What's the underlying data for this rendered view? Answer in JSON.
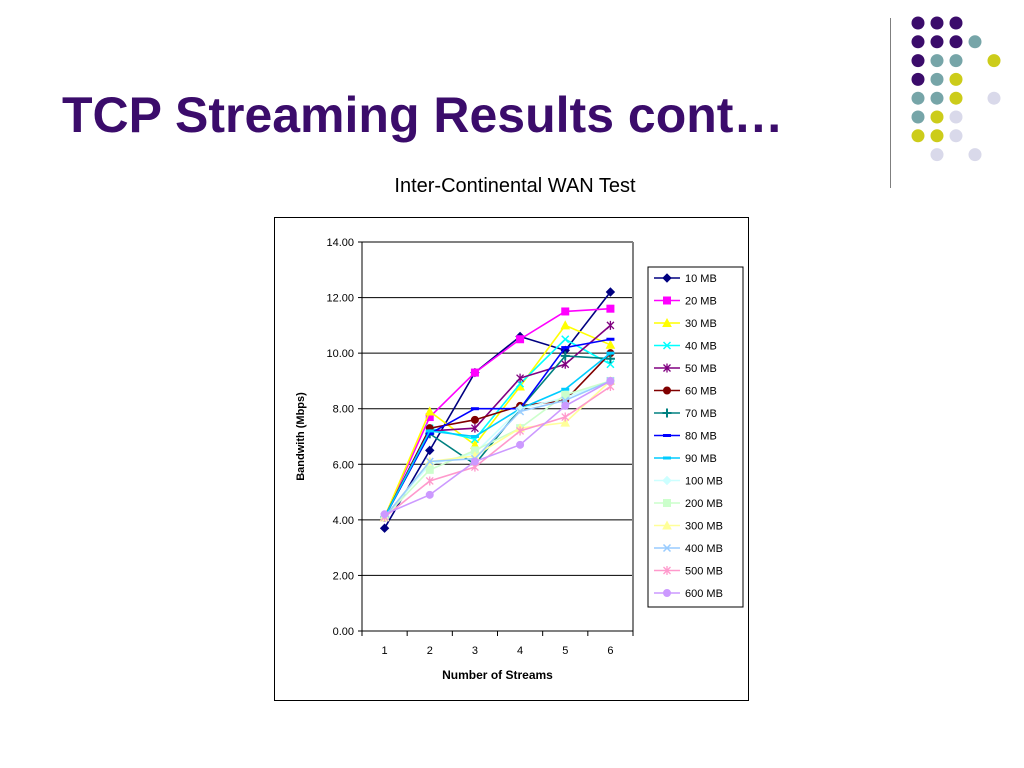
{
  "slide": {
    "title": "TCP Streaming Results cont…"
  },
  "decor": {
    "dot_colors": [
      "#3b0c6b",
      "#76a5a8",
      "#cccc1a",
      "#d9d9ea"
    ]
  },
  "chart_data": {
    "type": "line",
    "title": "Inter-Continental WAN Test",
    "xlabel": "Number of Streams",
    "ylabel": "Bandwith (Mbps)",
    "categories": [
      "1",
      "2",
      "3",
      "4",
      "5",
      "6"
    ],
    "ylim": [
      0,
      14
    ],
    "yticks": [
      "0.00",
      "2.00",
      "4.00",
      "6.00",
      "8.00",
      "10.00",
      "12.00",
      "14.00"
    ],
    "grid": true,
    "legend": "right",
    "series": [
      {
        "name": "10 MB",
        "color": "#000080",
        "marker": "diamond",
        "values": [
          3.7,
          6.5,
          9.3,
          10.6,
          10.1,
          12.2
        ]
      },
      {
        "name": "20 MB",
        "color": "#ff00ff",
        "marker": "square",
        "values": [
          4.1,
          7.7,
          9.3,
          10.5,
          11.5,
          11.6
        ]
      },
      {
        "name": "30 MB",
        "color": "#ffff00",
        "marker": "triangle",
        "values": [
          4.1,
          7.9,
          6.7,
          8.8,
          11.0,
          10.3
        ]
      },
      {
        "name": "40 MB",
        "color": "#00ffff",
        "marker": "x",
        "values": [
          4.1,
          7.3,
          6.9,
          8.9,
          10.5,
          9.6
        ]
      },
      {
        "name": "50 MB",
        "color": "#800080",
        "marker": "star",
        "values": [
          4.1,
          7.2,
          7.3,
          9.1,
          9.6,
          11.0
        ]
      },
      {
        "name": "60 MB",
        "color": "#800000",
        "marker": "circle",
        "values": [
          4.1,
          7.3,
          7.6,
          8.1,
          8.3,
          10.0
        ]
      },
      {
        "name": "70 MB",
        "color": "#008080",
        "marker": "plus",
        "values": [
          4.1,
          7.1,
          6.0,
          8.0,
          9.9,
          9.8
        ]
      },
      {
        "name": "80 MB",
        "color": "#0000ff",
        "marker": "dash",
        "values": [
          4.1,
          7.1,
          8.0,
          8.0,
          10.2,
          10.5
        ]
      },
      {
        "name": "90 MB",
        "color": "#00ccff",
        "marker": "dash",
        "values": [
          4.1,
          7.2,
          7.0,
          8.0,
          8.7,
          10.0
        ]
      },
      {
        "name": "100 MB",
        "color": "#ccffff",
        "marker": "diamond",
        "values": [
          4.1,
          6.0,
          6.4,
          8.0,
          8.4,
          9.0
        ]
      },
      {
        "name": "200 MB",
        "color": "#ccffcc",
        "marker": "square",
        "values": [
          4.1,
          5.8,
          6.5,
          7.3,
          8.5,
          9.0
        ]
      },
      {
        "name": "300 MB",
        "color": "#ffff99",
        "marker": "triangle",
        "values": [
          4.1,
          6.1,
          6.3,
          7.3,
          7.5,
          9.0
        ]
      },
      {
        "name": "400 MB",
        "color": "#99ccff",
        "marker": "x",
        "values": [
          4.1,
          6.1,
          6.2,
          7.9,
          8.3,
          9.0
        ]
      },
      {
        "name": "500 MB",
        "color": "#ff99cc",
        "marker": "star",
        "values": [
          4.1,
          5.4,
          5.9,
          7.2,
          7.7,
          8.8
        ]
      },
      {
        "name": "600 MB",
        "color": "#cc99ff",
        "marker": "circle",
        "values": [
          4.2,
          4.9,
          6.1,
          6.7,
          8.1,
          9.0
        ]
      }
    ]
  }
}
